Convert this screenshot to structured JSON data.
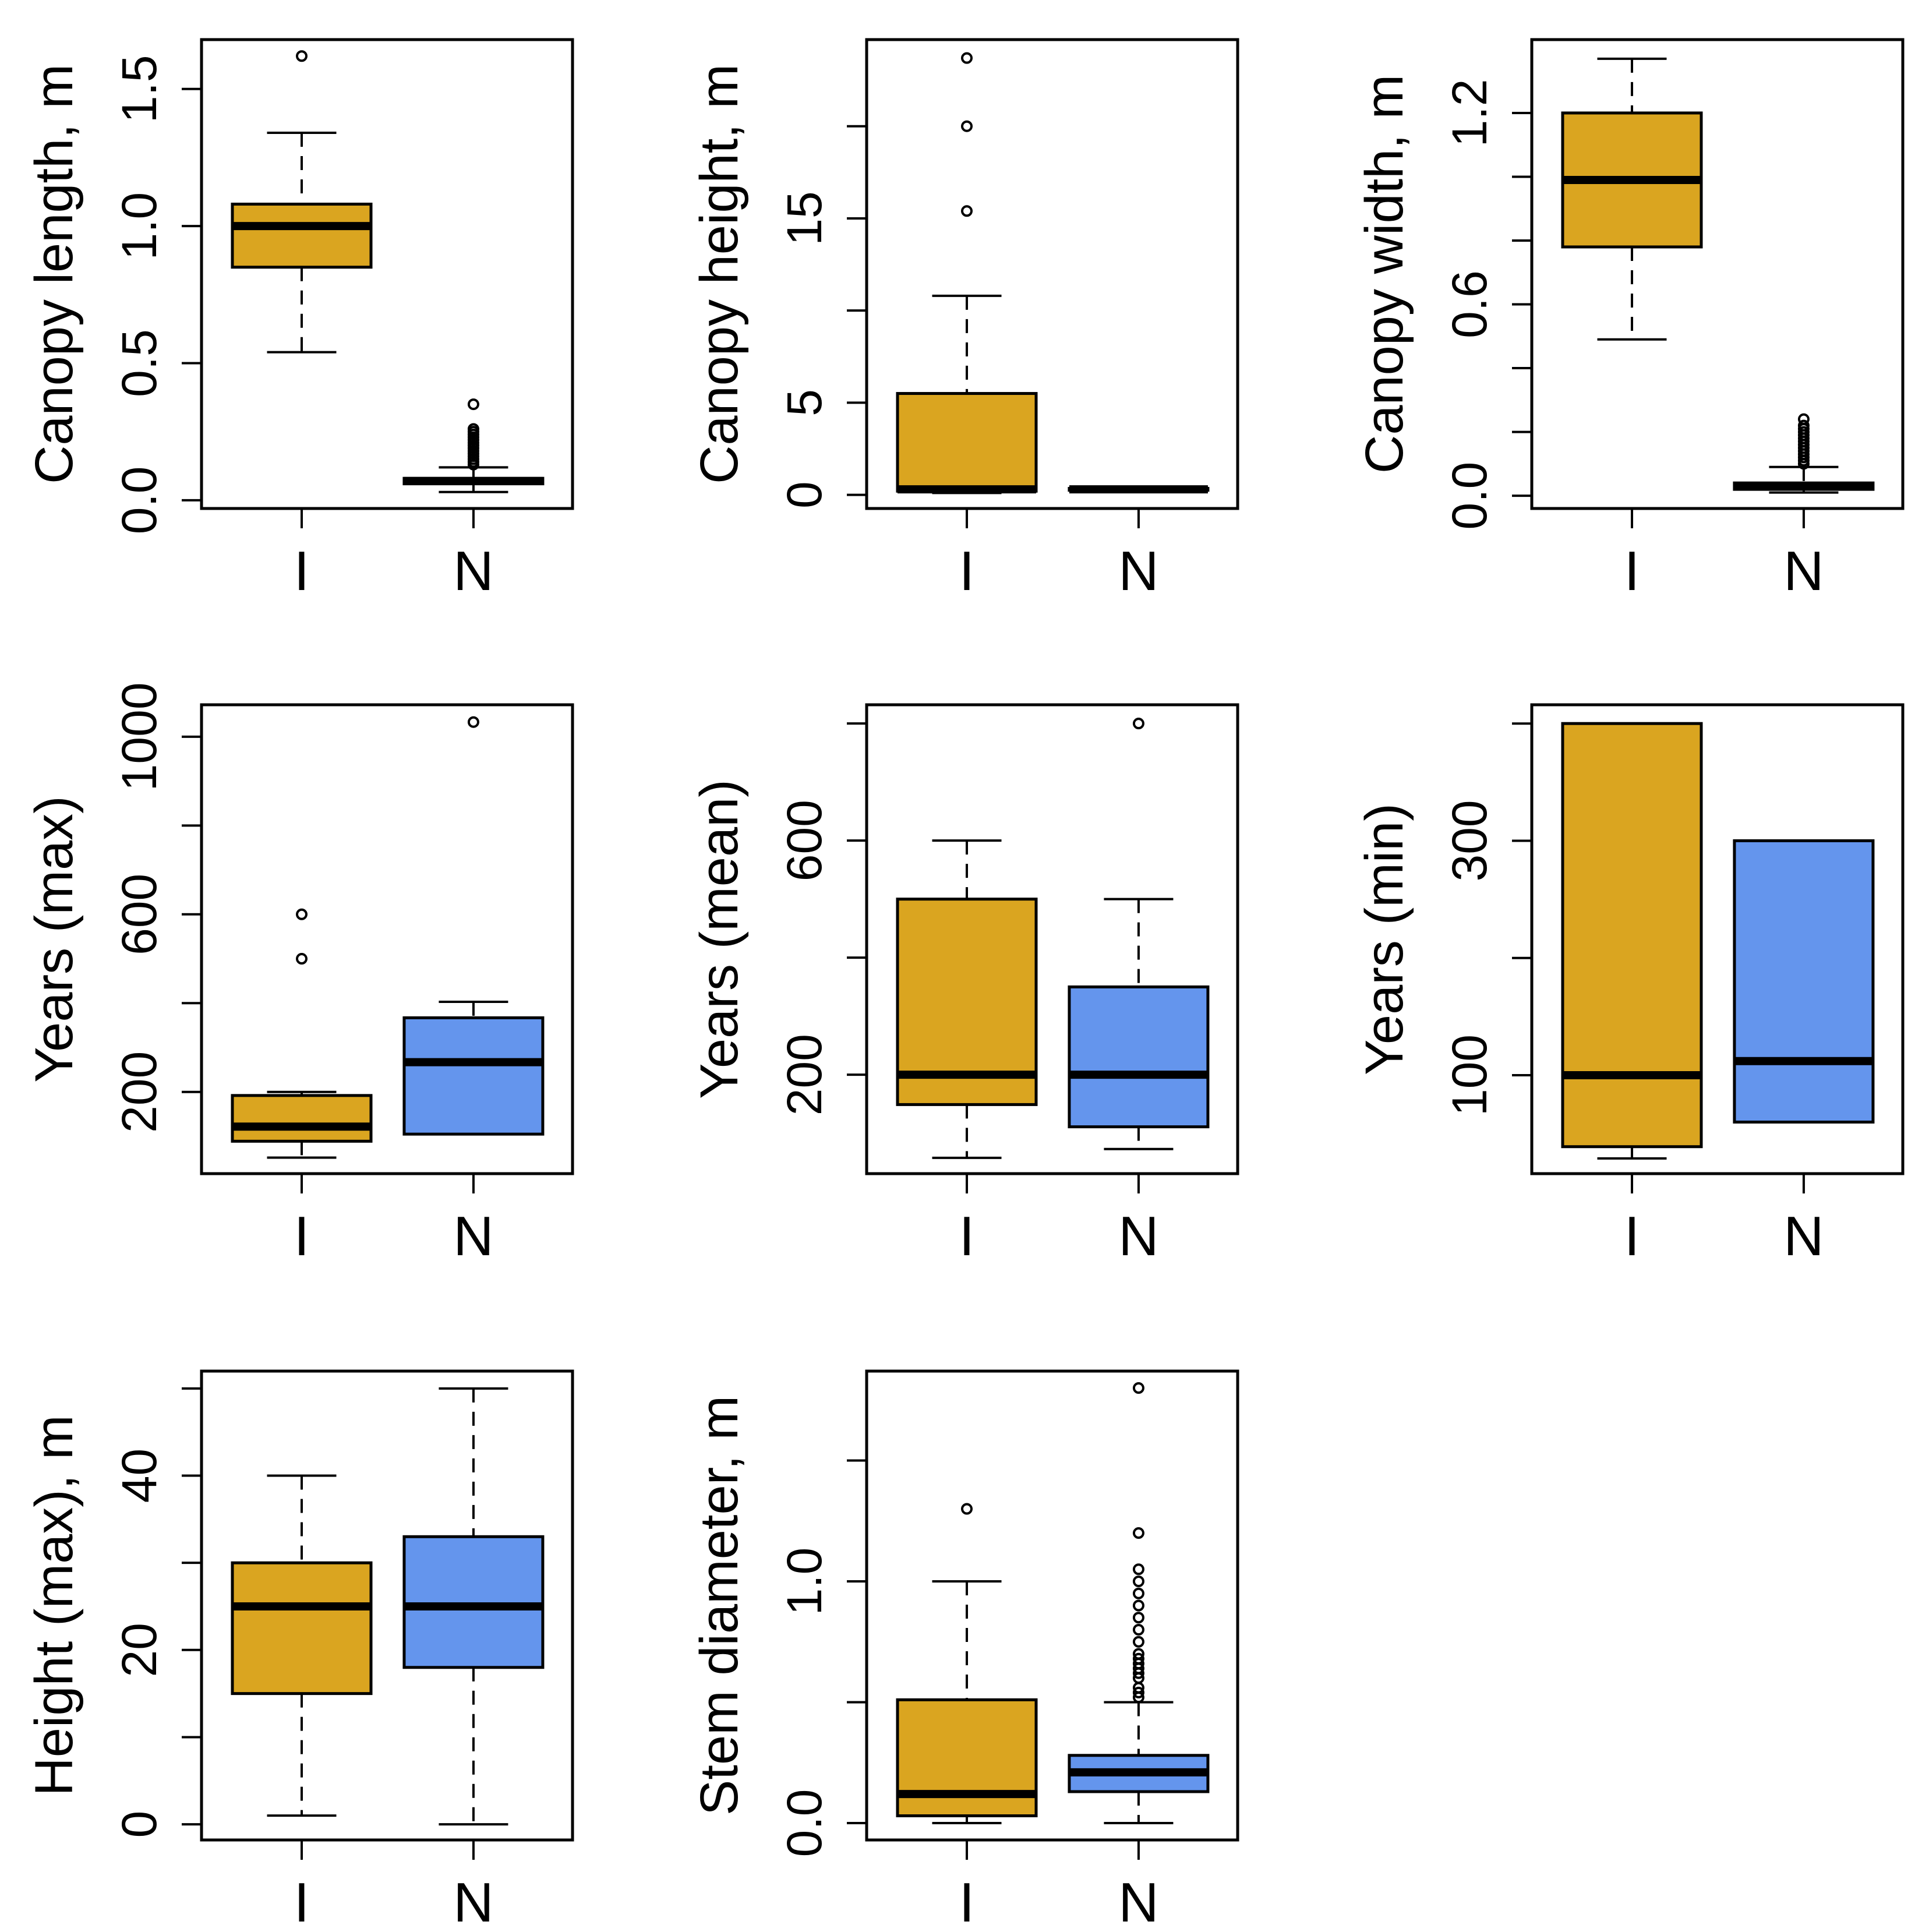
{
  "colors": {
    "I": "#DAA520",
    "N": "#6495ED",
    "line": "#000000"
  },
  "chart_data": [
    {
      "type": "box",
      "ylabel": "Canopy length, m",
      "categories": [
        "I",
        "N"
      ],
      "ylim": [
        -0.03,
        1.68
      ],
      "yticks": [
        {
          "v": 0,
          "label": "0.0"
        },
        {
          "v": 0.5,
          "label": "0.5"
        },
        {
          "v": 1.0,
          "label": "1.0"
        },
        {
          "v": 1.5,
          "label": "1.5"
        }
      ],
      "groups": [
        {
          "name": "I",
          "whisker_low": 0.54,
          "q1": 0.85,
          "median": 1.0,
          "q3": 1.08,
          "whisker_high": 1.34,
          "outliers": [
            1.62
          ]
        },
        {
          "name": "N",
          "whisker_low": 0.03,
          "q1": 0.06,
          "median": 0.07,
          "q3": 0.08,
          "whisker_high": 0.12,
          "outliers": [
            0.13,
            0.14,
            0.15,
            0.16,
            0.17,
            0.18,
            0.19,
            0.2,
            0.21,
            0.22,
            0.23,
            0.24,
            0.25,
            0.26,
            0.35
          ]
        }
      ]
    },
    {
      "type": "box",
      "ylabel": "Canopy height, m",
      "categories": [
        "I",
        "N"
      ],
      "ylim": [
        -0.74,
        24.7
      ],
      "yticks": [
        {
          "v": 0,
          "label": "0"
        },
        {
          "v": 5,
          "label": "5"
        },
        {
          "v": 10,
          "label": ""
        },
        {
          "v": 15,
          "label": "15"
        },
        {
          "v": 20,
          "label": ""
        }
      ],
      "groups": [
        {
          "name": "I",
          "whisker_low": 0.1,
          "q1": 0.2,
          "median": 0.3,
          "q3": 5.5,
          "whisker_high": 10.8,
          "outliers": [
            15.4,
            20.0,
            23.7
          ]
        },
        {
          "name": "N",
          "whisker_low": 0.2,
          "q1": 0.25,
          "median": 0.3,
          "q3": 0.35,
          "whisker_high": 0.4,
          "outliers": []
        }
      ]
    },
    {
      "type": "box",
      "ylabel": "Canopy width, m",
      "categories": [
        "I",
        "N"
      ],
      "ylim": [
        -0.04,
        1.43
      ],
      "yticks": [
        {
          "v": 0,
          "label": "0.0"
        },
        {
          "v": 0.2,
          "label": ""
        },
        {
          "v": 0.4,
          "label": ""
        },
        {
          "v": 0.6,
          "label": "0.6"
        },
        {
          "v": 0.8,
          "label": ""
        },
        {
          "v": 1.0,
          "label": ""
        },
        {
          "v": 1.2,
          "label": "1.2"
        }
      ],
      "groups": [
        {
          "name": "I",
          "whisker_low": 0.49,
          "q1": 0.78,
          "median": 0.99,
          "q3": 1.2,
          "whisker_high": 1.37,
          "outliers": []
        },
        {
          "name": "N",
          "whisker_low": 0.01,
          "q1": 0.02,
          "median": 0.03,
          "q3": 0.04,
          "whisker_high": 0.09,
          "outliers": [
            0.1,
            0.11,
            0.12,
            0.13,
            0.14,
            0.15,
            0.16,
            0.17,
            0.18,
            0.19,
            0.2,
            0.21,
            0.22,
            0.24
          ]
        }
      ]
    },
    {
      "type": "box",
      "ylabel": "Years (max)",
      "categories": [
        "I",
        "N"
      ],
      "ylim": [
        16,
        1072
      ],
      "yticks": [
        {
          "v": 200,
          "label": "200"
        },
        {
          "v": 400,
          "label": ""
        },
        {
          "v": 600,
          "label": "600"
        },
        {
          "v": 800,
          "label": ""
        },
        {
          "v": 1000,
          "label": "1000"
        }
      ],
      "groups": [
        {
          "name": "I",
          "whisker_low": 52,
          "q1": 89,
          "median": 122,
          "q3": 192,
          "whisker_high": 200,
          "outliers": [
            500,
            600
          ]
        },
        {
          "name": "N",
          "whisker_low": 105,
          "q1": 105,
          "median": 267,
          "q3": 367,
          "whisker_high": 403,
          "outliers": [
            1033
          ]
        }
      ]
    },
    {
      "type": "box",
      "ylabel": "Years (mean)",
      "categories": [
        "I",
        "N"
      ],
      "ylim": [
        31,
        832
      ],
      "yticks": [
        {
          "v": 200,
          "label": "200"
        },
        {
          "v": 400,
          "label": ""
        },
        {
          "v": 600,
          "label": "600"
        },
        {
          "v": 800,
          "label": ""
        }
      ],
      "groups": [
        {
          "name": "I",
          "whisker_low": 58,
          "q1": 149,
          "median": 200,
          "q3": 500,
          "whisker_high": 600,
          "outliers": []
        },
        {
          "name": "N",
          "whisker_low": 73,
          "q1": 111,
          "median": 200,
          "q3": 350,
          "whisker_high": 500,
          "outliers": [
            800
          ]
        }
      ]
    },
    {
      "type": "box",
      "ylabel": "Years (min)",
      "categories": [
        "I",
        "N"
      ],
      "ylim": [
        16,
        416
      ],
      "yticks": [
        {
          "v": 100,
          "label": "100"
        },
        {
          "v": 200,
          "label": ""
        },
        {
          "v": 300,
          "label": "300"
        },
        {
          "v": 400,
          "label": ""
        }
      ],
      "groups": [
        {
          "name": "I",
          "whisker_low": 29,
          "q1": 39,
          "median": 100,
          "q3": 400,
          "whisker_high": 400,
          "outliers": []
        },
        {
          "name": "N",
          "whisker_low": 60,
          "q1": 60,
          "median": 112,
          "q3": 300,
          "whisker_high": 300,
          "outliers": []
        }
      ]
    },
    {
      "type": "box",
      "ylabel": "Height (max), m",
      "categories": [
        "I",
        "N"
      ],
      "ylim": [
        -1.8,
        52
      ],
      "yticks": [
        {
          "v": 0,
          "label": "0"
        },
        {
          "v": 10,
          "label": ""
        },
        {
          "v": 20,
          "label": "20"
        },
        {
          "v": 30,
          "label": ""
        },
        {
          "v": 40,
          "label": "40"
        },
        {
          "v": 50,
          "label": ""
        }
      ],
      "groups": [
        {
          "name": "I",
          "whisker_low": 1,
          "q1": 15,
          "median": 25,
          "q3": 30,
          "whisker_high": 40,
          "outliers": []
        },
        {
          "name": "N",
          "whisker_low": 0,
          "q1": 18,
          "median": 25,
          "q3": 33,
          "whisker_high": 50,
          "outliers": []
        }
      ]
    },
    {
      "type": "box",
      "ylabel": "Stem diameter, m",
      "categories": [
        "I",
        "N"
      ],
      "ylim": [
        -0.07,
        1.87
      ],
      "yticks": [
        {
          "v": 0,
          "label": "0.0"
        },
        {
          "v": 0.5,
          "label": ""
        },
        {
          "v": 1.0,
          "label": "1.0"
        },
        {
          "v": 1.5,
          "label": ""
        }
      ],
      "groups": [
        {
          "name": "I",
          "whisker_low": 0.0,
          "q1": 0.03,
          "median": 0.12,
          "q3": 0.51,
          "whisker_high": 1.0,
          "outliers": [
            1.3
          ]
        },
        {
          "name": "N",
          "whisker_low": 0.0,
          "q1": 0.13,
          "median": 0.21,
          "q3": 0.28,
          "whisker_high": 0.5,
          "outliers": [
            0.52,
            0.54,
            0.56,
            0.6,
            0.62,
            0.64,
            0.66,
            0.68,
            0.7,
            0.75,
            0.8,
            0.85,
            0.9,
            0.95,
            1.0,
            1.05,
            1.2,
            1.8
          ]
        }
      ]
    }
  ]
}
